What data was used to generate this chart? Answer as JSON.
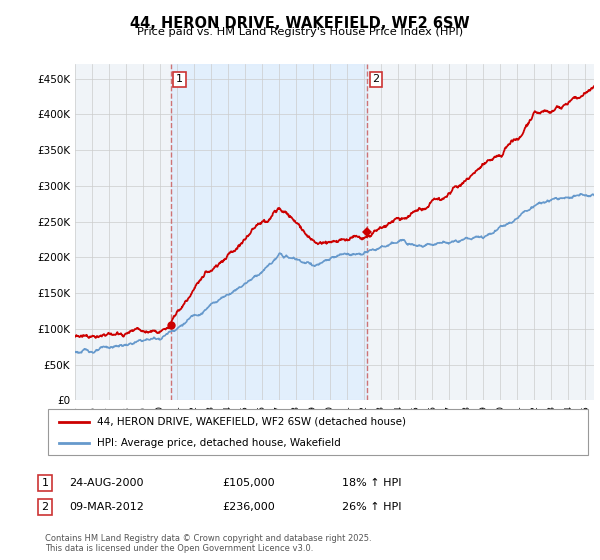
{
  "title": "44, HERON DRIVE, WAKEFIELD, WF2 6SW",
  "subtitle": "Price paid vs. HM Land Registry's House Price Index (HPI)",
  "ylim": [
    0,
    470000
  ],
  "yticks": [
    0,
    50000,
    100000,
    150000,
    200000,
    250000,
    300000,
    350000,
    400000,
    450000
  ],
  "ytick_labels": [
    "£0",
    "£50K",
    "£100K",
    "£150K",
    "£200K",
    "£250K",
    "£300K",
    "£350K",
    "£400K",
    "£450K"
  ],
  "red_color": "#cc0000",
  "blue_color": "#6699cc",
  "blue_fill_color": "#ddeeff",
  "dashed_color": "#cc6666",
  "background_color": "#ffffff",
  "plot_bg_color": "#f0f4f8",
  "grid_color": "#cccccc",
  "annotation1": {
    "num": "1",
    "date": "24-AUG-2000",
    "price": "£105,000",
    "hpi": "18% ↑ HPI"
  },
  "annotation2": {
    "num": "2",
    "date": "09-MAR-2012",
    "price": "£236,000",
    "hpi": "26% ↑ HPI"
  },
  "legend_red": "44, HERON DRIVE, WAKEFIELD, WF2 6SW (detached house)",
  "legend_blue": "HPI: Average price, detached house, Wakefield",
  "footer": "Contains HM Land Registry data © Crown copyright and database right 2025.\nThis data is licensed under the Open Government Licence v3.0.",
  "sale1_x": 2000.65,
  "sale1_y": 105000,
  "sale2_x": 2012.18,
  "sale2_y": 236000,
  "xmin": 1995,
  "xmax": 2025.5
}
